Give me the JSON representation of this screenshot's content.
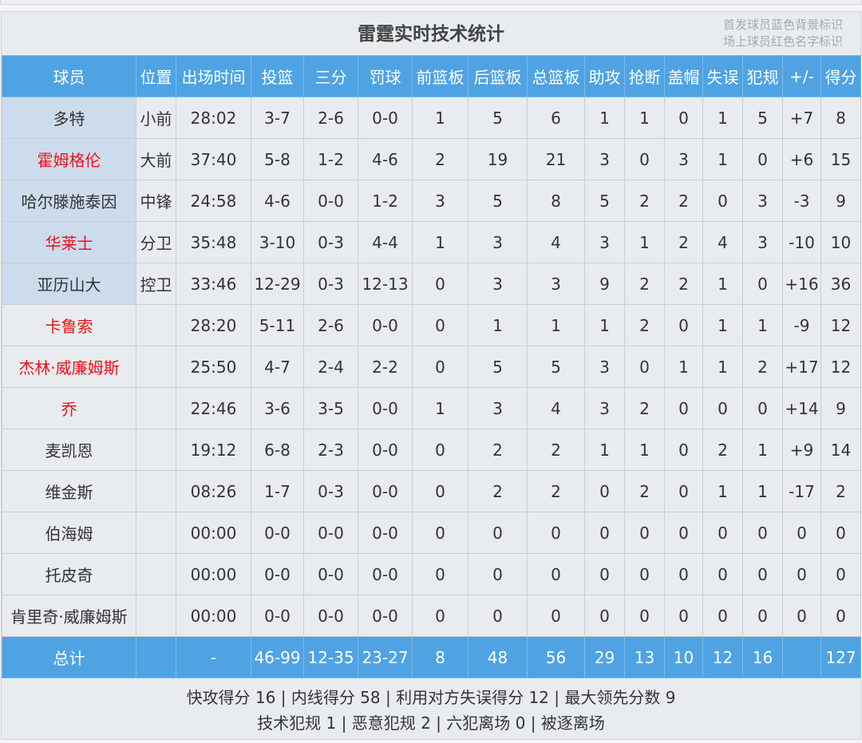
{
  "title": "雷霆实时技术统计",
  "legend": [
    "首发球员蓝色背景标识",
    "场上球员红色名字标识"
  ],
  "colors": {
    "header": "#4fa3e3",
    "starter_bg": "#cddcec",
    "on_court_name": "#e8141a"
  },
  "columns": [
    "球员",
    "位置",
    "出场时间",
    "投篮",
    "三分",
    "罚球",
    "前篮板",
    "后篮板",
    "总篮板",
    "助攻",
    "抢断",
    "盖帽",
    "失误",
    "犯规",
    "+/-",
    "得分"
  ],
  "rows": [
    {
      "starter": true,
      "on_court": false,
      "cells": [
        "多特",
        "小前",
        "28:02",
        "3-7",
        "2-6",
        "0-0",
        "1",
        "5",
        "6",
        "1",
        "1",
        "0",
        "1",
        "5",
        "+7",
        "8"
      ]
    },
    {
      "starter": true,
      "on_court": true,
      "cells": [
        "霍姆格伦",
        "大前",
        "37:40",
        "5-8",
        "1-2",
        "4-6",
        "2",
        "19",
        "21",
        "3",
        "0",
        "3",
        "1",
        "0",
        "+6",
        "15"
      ]
    },
    {
      "starter": true,
      "on_court": false,
      "cells": [
        "哈尔滕施泰因",
        "中锋",
        "24:58",
        "4-6",
        "0-0",
        "1-2",
        "3",
        "5",
        "8",
        "5",
        "2",
        "2",
        "0",
        "3",
        "-3",
        "9"
      ]
    },
    {
      "starter": true,
      "on_court": true,
      "cells": [
        "华莱士",
        "分卫",
        "35:48",
        "3-10",
        "0-3",
        "4-4",
        "1",
        "3",
        "4",
        "3",
        "1",
        "2",
        "4",
        "3",
        "-10",
        "10"
      ]
    },
    {
      "starter": true,
      "on_court": false,
      "cells": [
        "亚历山大",
        "控卫",
        "33:46",
        "12-29",
        "0-3",
        "12-13",
        "0",
        "3",
        "3",
        "9",
        "2",
        "2",
        "1",
        "0",
        "+16",
        "36"
      ]
    },
    {
      "starter": false,
      "on_court": true,
      "cells": [
        "卡鲁索",
        "",
        "28:20",
        "5-11",
        "2-6",
        "0-0",
        "0",
        "1",
        "1",
        "1",
        "2",
        "0",
        "1",
        "1",
        "-9",
        "12"
      ]
    },
    {
      "starter": false,
      "on_court": true,
      "cells": [
        "杰林·威廉姆斯",
        "",
        "25:50",
        "4-7",
        "2-4",
        "2-2",
        "0",
        "5",
        "5",
        "3",
        "0",
        "1",
        "1",
        "2",
        "+17",
        "12"
      ]
    },
    {
      "starter": false,
      "on_court": true,
      "cells": [
        "乔",
        "",
        "22:46",
        "3-6",
        "3-5",
        "0-0",
        "1",
        "3",
        "4",
        "3",
        "2",
        "0",
        "0",
        "0",
        "+14",
        "9"
      ]
    },
    {
      "starter": false,
      "on_court": false,
      "cells": [
        "麦凯恩",
        "",
        "19:12",
        "6-8",
        "2-3",
        "0-0",
        "0",
        "2",
        "2",
        "1",
        "1",
        "0",
        "2",
        "1",
        "+9",
        "14"
      ]
    },
    {
      "starter": false,
      "on_court": false,
      "cells": [
        "维金斯",
        "",
        "08:26",
        "1-7",
        "0-3",
        "0-0",
        "0",
        "2",
        "2",
        "0",
        "2",
        "0",
        "1",
        "1",
        "-17",
        "2"
      ]
    },
    {
      "starter": false,
      "on_court": false,
      "cells": [
        "伯海姆",
        "",
        "00:00",
        "0-0",
        "0-0",
        "0-0",
        "0",
        "0",
        "0",
        "0",
        "0",
        "0",
        "0",
        "0",
        "0",
        "0"
      ]
    },
    {
      "starter": false,
      "on_court": false,
      "cells": [
        "托皮奇",
        "",
        "00:00",
        "0-0",
        "0-0",
        "0-0",
        "0",
        "0",
        "0",
        "0",
        "0",
        "0",
        "0",
        "0",
        "0",
        "0"
      ]
    },
    {
      "starter": false,
      "on_court": false,
      "cells": [
        "肯里奇·威廉姆斯",
        "",
        "00:00",
        "0-0",
        "0-0",
        "0-0",
        "0",
        "0",
        "0",
        "0",
        "0",
        "0",
        "0",
        "0",
        "0",
        "0"
      ]
    }
  ],
  "total": [
    "总计",
    "",
    "-",
    "46-99",
    "12-35",
    "23-27",
    "8",
    "48",
    "56",
    "29",
    "13",
    "10",
    "12",
    "16",
    "",
    "127"
  ],
  "footer": [
    "快攻得分 16 | 内线得分 58 | 利用对方失误得分 12 | 最大领先分数 9",
    "技术犯规 1 | 恶意犯规 2 | 六犯离场 0 | 被逐离场"
  ]
}
